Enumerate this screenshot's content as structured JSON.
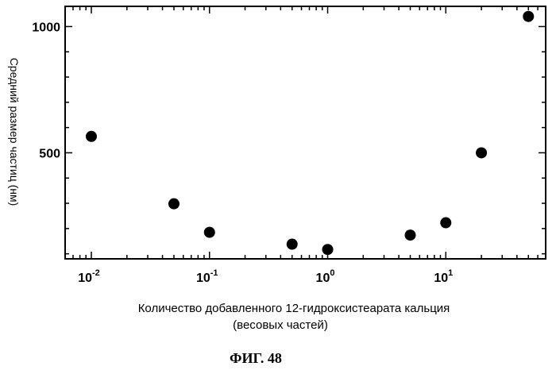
{
  "chart_data": {
    "type": "scatter",
    "x_scale": "log",
    "xlim": [
      0.006,
      70
    ],
    "ylim": [
      80,
      1080
    ],
    "x_ticks": [
      {
        "base": "10",
        "exp": "-2",
        "value": 0.01
      },
      {
        "base": "10",
        "exp": "-1",
        "value": 0.1
      },
      {
        "base": "10",
        "exp": "0",
        "value": 1
      },
      {
        "base": "10",
        "exp": "1",
        "value": 10
      }
    ],
    "y_ticks": [
      {
        "label": "500",
        "value": 500
      },
      {
        "label": "1000",
        "value": 1000
      }
    ],
    "points": [
      {
        "x": 0.01,
        "y": 565
      },
      {
        "x": 0.05,
        "y": 298
      },
      {
        "x": 0.1,
        "y": 185
      },
      {
        "x": 0.5,
        "y": 138
      },
      {
        "x": 1,
        "y": 117
      },
      {
        "x": 5,
        "y": 174
      },
      {
        "x": 10,
        "y": 223
      },
      {
        "x": 20,
        "y": 500
      },
      {
        "x": 50,
        "y": 1040
      }
    ],
    "xlabel_line1": "Количество добавленного 12-гидроксистеарата кальция",
    "xlabel_line2": "(весовых частей)",
    "ylabel": "Средний размер частиц (нм)",
    "grid": false,
    "marker_color": "#000000"
  },
  "caption": "ФИГ. 48"
}
